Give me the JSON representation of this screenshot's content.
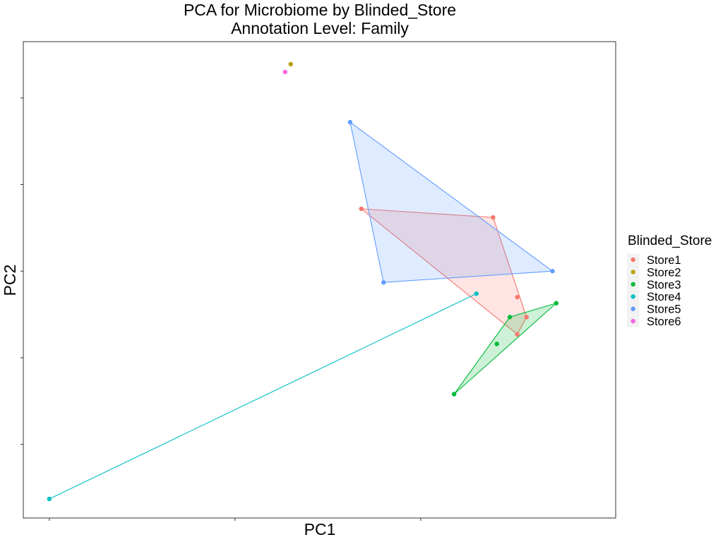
{
  "chart_data": {
    "type": "scatter",
    "title": "PCA for Microbiome by Blinded_Store",
    "subtitle": "Annotation Level: Family",
    "xlabel": "PC1",
    "ylabel": "PC2",
    "xlim": [
      -0.14,
      3.05
    ],
    "ylim": [
      -2.85,
      2.65
    ],
    "x_ticks": [
      0,
      1,
      2
    ],
    "y_ticks": [
      -2,
      -1,
      0,
      1,
      2
    ],
    "tick_labels_shown": false,
    "grid": false,
    "legend": {
      "title": "Blinded_Store",
      "position": "right"
    },
    "hulls": true,
    "series": [
      {
        "name": "Store1",
        "color": "#F8766D",
        "points": [
          [
            1.68,
            0.72
          ],
          [
            2.39,
            0.62
          ],
          [
            2.52,
            -0.3
          ],
          [
            2.57,
            -0.53
          ],
          [
            2.52,
            -0.73
          ]
        ]
      },
      {
        "name": "Store2",
        "color": "#B79F00",
        "points": [
          [
            1.3,
            2.39
          ]
        ]
      },
      {
        "name": "Store3",
        "color": "#00BA38",
        "points": [
          [
            2.48,
            -0.53
          ],
          [
            2.73,
            -0.37
          ],
          [
            2.41,
            -0.84
          ],
          [
            2.18,
            -1.42
          ]
        ]
      },
      {
        "name": "Store4",
        "color": "#00BFC4",
        "points": [
          [
            2.3,
            -0.26
          ],
          [
            0.0,
            -2.63
          ]
        ]
      },
      {
        "name": "Store5",
        "color": "#619CFF",
        "points": [
          [
            1.62,
            1.72
          ],
          [
            2.71,
            0.0
          ],
          [
            1.8,
            -0.13
          ]
        ]
      },
      {
        "name": "Store6",
        "color": "#F564E3",
        "points": [
          [
            1.27,
            2.3
          ]
        ]
      }
    ]
  }
}
